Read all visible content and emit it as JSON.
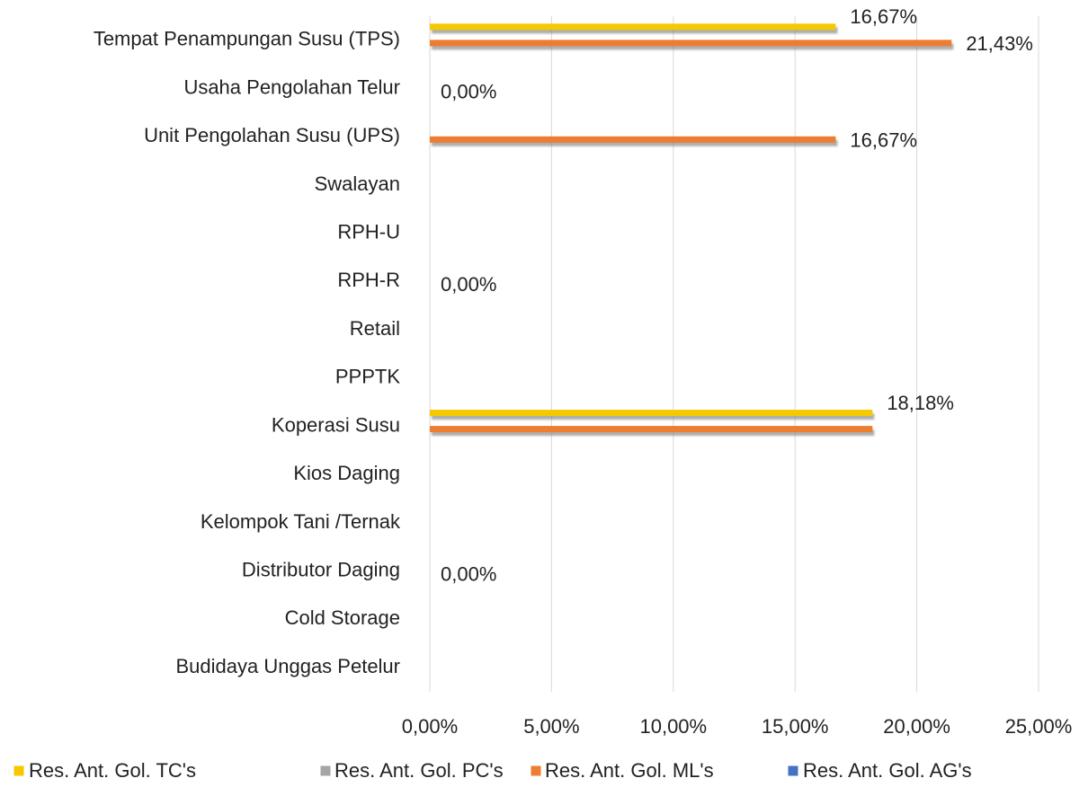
{
  "chart_data": {
    "type": "hbar",
    "categories": [
      "Tempat Penampungan Susu (TPS)",
      "Usaha Pengolahan Telur",
      "Unit Pengolahan Susu (UPS)",
      "Swalayan",
      "RPH-U",
      "RPH-R",
      "Retail",
      "PPPTK",
      "Koperasi Susu",
      "Kios Daging",
      "Kelompok Tani /Ternak",
      "Distributor Daging",
      "Cold Storage",
      "Budidaya Unggas Petelur"
    ],
    "series": [
      {
        "name": "Res. Ant. Gol. TC's",
        "color": "#f5c800",
        "values": [
          16.67,
          0,
          0,
          0,
          0,
          0,
          0,
          0,
          18.18,
          0,
          0,
          0,
          0,
          0
        ],
        "value_labels": [
          "16,67%",
          "0,00%",
          null,
          null,
          null,
          "0,00%",
          null,
          null,
          "18,18%",
          null,
          null,
          "0,00%",
          null,
          null
        ]
      },
      {
        "name": "Res. Ant. Gol. PC's",
        "color": "#a5a5a5",
        "values": [
          0,
          0,
          0,
          0,
          0,
          0,
          0,
          0,
          0,
          0,
          0,
          0,
          0,
          0
        ]
      },
      {
        "name": "Res. Ant. Gol. ML's",
        "color": "#ed7d31",
        "values": [
          21.43,
          0,
          16.67,
          0,
          0,
          0,
          0,
          0,
          18.18,
          0,
          0,
          0,
          0,
          0
        ],
        "value_labels": [
          "21,43%",
          null,
          "16,67%",
          null,
          null,
          null,
          null,
          null,
          null,
          null,
          null,
          null,
          null,
          null
        ]
      },
      {
        "name": "Res. Ant. Gol. AG's",
        "color": "#4472c4",
        "values": [
          0,
          0,
          0,
          0,
          0,
          0,
          0,
          0,
          0,
          0,
          0,
          0,
          0,
          0
        ]
      }
    ],
    "xlim": [
      0,
      25
    ],
    "xticks": [
      {
        "value": 0,
        "label": "0,00%"
      },
      {
        "value": 5,
        "label": "5,00%"
      },
      {
        "value": 10,
        "label": "10,00%"
      },
      {
        "value": 15,
        "label": "15,00%"
      },
      {
        "value": 20,
        "label": "20,00%"
      },
      {
        "value": 25,
        "label": "25,00%"
      }
    ],
    "grid": true,
    "legend": "bottom"
  }
}
